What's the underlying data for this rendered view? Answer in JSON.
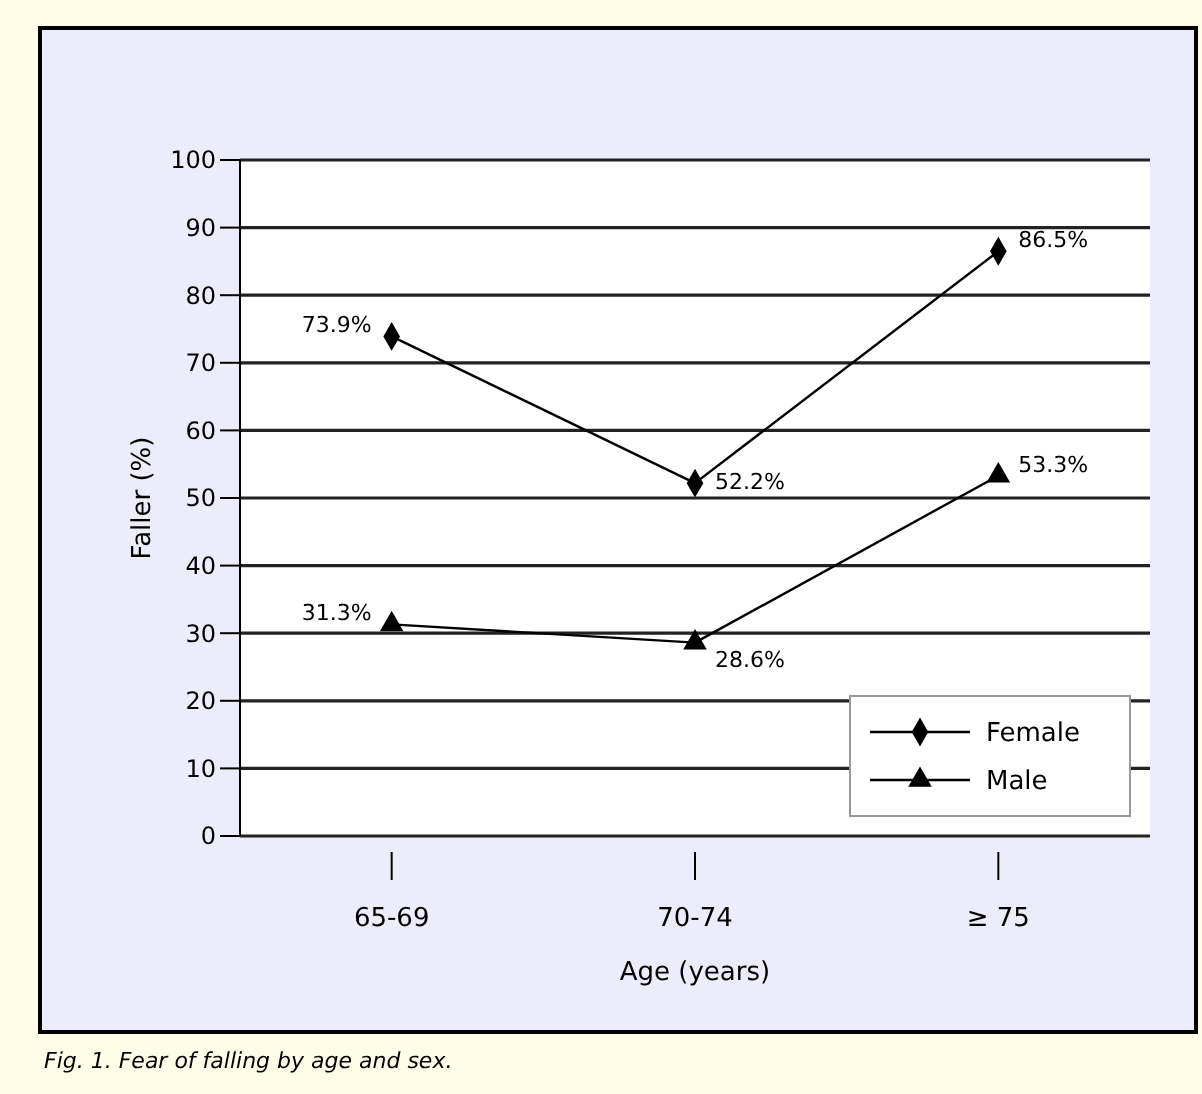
{
  "chart_data": {
    "type": "line",
    "xlabel": "Age (years)",
    "ylabel": "Faller (%)",
    "categories": [
      "65-69",
      "70-74",
      "≥ 75"
    ],
    "ylim": [
      0,
      100
    ],
    "yticks": [
      0,
      10,
      20,
      30,
      40,
      50,
      60,
      70,
      80,
      90,
      100
    ],
    "grid": "y",
    "legend": "bottom right",
    "series": [
      {
        "name": "Female",
        "color": "#000000",
        "marker": "diamond",
        "values": [
          73.9,
          52.2,
          86.5
        ],
        "value_labels": [
          "73.9%",
          "52.2%",
          "86.5%"
        ]
      },
      {
        "name": "Male",
        "color": "#000000",
        "marker": "triangle",
        "values": [
          31.3,
          28.6,
          53.3
        ],
        "value_labels": [
          "31.3%",
          "28.6%",
          "53.3%"
        ]
      }
    ],
    "annotations": [
      "Fig. 1. Fear of falling by age and sex."
    ]
  }
}
